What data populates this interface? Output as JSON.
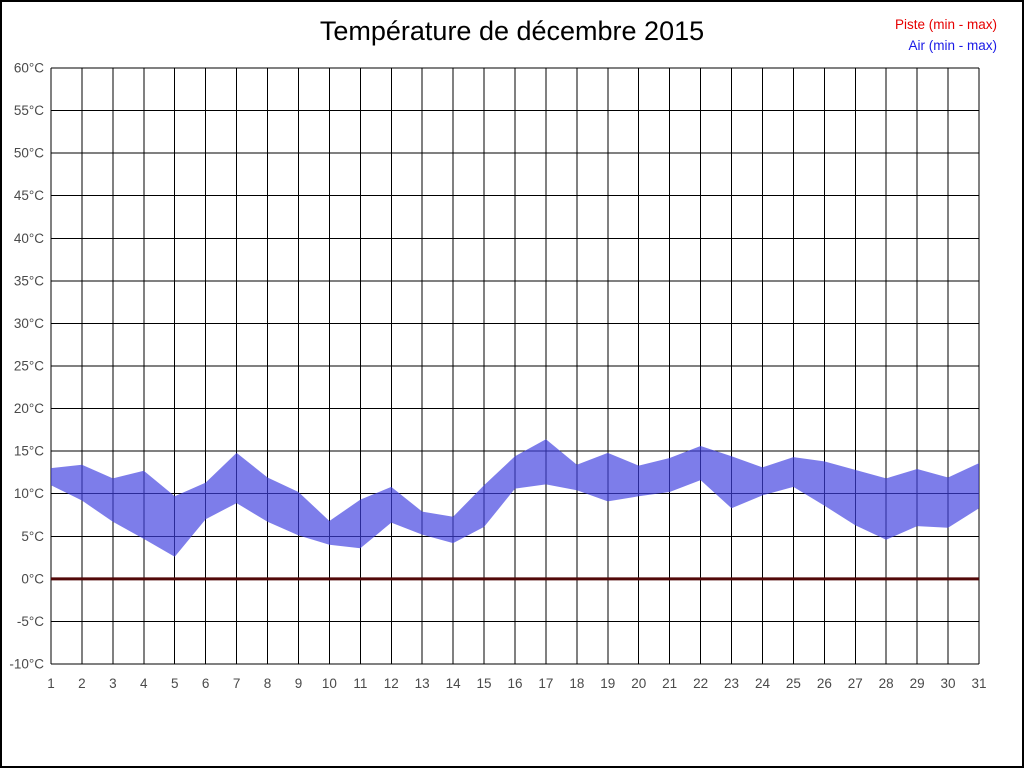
{
  "figure": {
    "title": "Température de décembre 2015",
    "legend": [
      {
        "label": "Piste (min - max)",
        "color": "#e60000"
      },
      {
        "label": "Air (min - max)",
        "color": "#1a1ae6"
      }
    ]
  },
  "chart_data": {
    "type": "area",
    "title": "Température de décembre 2015",
    "x": [
      1,
      2,
      3,
      4,
      5,
      6,
      7,
      8,
      9,
      10,
      11,
      12,
      13,
      14,
      15,
      16,
      17,
      18,
      19,
      20,
      21,
      22,
      23,
      24,
      25,
      26,
      27,
      28,
      29,
      30,
      31
    ],
    "xlabel": "",
    "ylabel": "",
    "ylim": [
      -10,
      60
    ],
    "ytick_step": 5,
    "ytick_suffix": "°C",
    "grid": true,
    "grid_color": "#000000",
    "axis_label_color": "#4a4a4a",
    "legend_position": "top-right",
    "series": [
      {
        "name": "Piste (min - max)",
        "color": "#520808",
        "min": [
          0,
          0,
          0,
          0,
          0,
          0,
          0,
          0,
          0,
          0,
          0,
          0,
          0,
          0,
          0,
          0,
          0,
          0,
          0,
          0,
          0,
          0,
          0,
          0,
          0,
          0,
          0,
          0,
          0,
          0,
          0
        ],
        "max": [
          0,
          0,
          0,
          0,
          0,
          0,
          0,
          0,
          0,
          0,
          0,
          0,
          0,
          0,
          0,
          0,
          0,
          0,
          0,
          0,
          0,
          0,
          0,
          0,
          0,
          0,
          0,
          0,
          0,
          0,
          0
        ]
      },
      {
        "name": "Air (min - max)",
        "color": "#4040e0",
        "fill_opacity": 0.68,
        "min": [
          11.0,
          9.2,
          6.7,
          4.7,
          2.6,
          7.0,
          8.9,
          6.7,
          5.1,
          4.0,
          3.6,
          6.6,
          5.2,
          4.2,
          6.1,
          10.6,
          11.1,
          10.4,
          9.1,
          9.7,
          10.2,
          11.6,
          8.3,
          9.8,
          10.8,
          8.6,
          6.3,
          4.6,
          6.2,
          6.0,
          8.3
        ],
        "max": [
          13.0,
          13.4,
          11.8,
          12.7,
          9.7,
          11.3,
          14.8,
          11.9,
          10.2,
          6.8,
          9.3,
          10.8,
          7.9,
          7.3,
          11.0,
          14.4,
          16.4,
          13.4,
          14.8,
          13.3,
          14.2,
          15.6,
          14.4,
          13.1,
          14.3,
          13.8,
          12.8,
          11.8,
          12.9,
          11.9,
          13.6
        ]
      }
    ]
  }
}
